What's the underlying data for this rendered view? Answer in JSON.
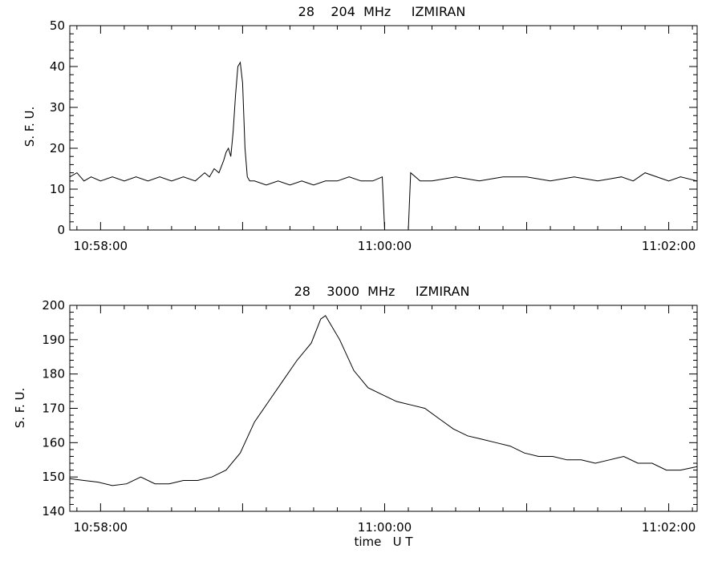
{
  "chart_data": [
    {
      "type": "line",
      "title": "28    204  MHz     IZMIRAN",
      "ylabel": "S. F. U.",
      "xlabel": "",
      "xlim": [
        "10:57:47",
        "11:02:12"
      ],
      "ylim": [
        0,
        50
      ],
      "yticks": [
        0,
        10,
        20,
        30,
        40,
        50
      ],
      "xtick_labels": [
        "10:58:00",
        "11:00:00",
        "11:02:00"
      ],
      "grid": false,
      "series": [
        {
          "x": [
            "10:57:47",
            "10:57:50",
            "10:57:53",
            "10:57:56",
            "10:58:00",
            "10:58:05",
            "10:58:10",
            "10:58:15",
            "10:58:20",
            "10:58:25",
            "10:58:30",
            "10:58:35",
            "10:58:40",
            "10:58:44",
            "10:58:46",
            "10:58:48",
            "10:58:50",
            "10:58:52",
            "10:58:53",
            "10:58:54",
            "10:58:55",
            "10:58:56",
            "10:58:57",
            "10:58:58",
            "10:58:59",
            "10:59:00",
            "10:59:01",
            "10:59:02",
            "10:59:03",
            "10:59:05",
            "10:59:10",
            "10:59:15",
            "10:59:20",
            "10:59:25",
            "10:59:30",
            "10:59:35",
            "10:59:40",
            "10:59:45",
            "10:59:50",
            "10:59:55",
            "10:59:59",
            "11:00:00",
            "11:00:10",
            "11:00:11",
            "11:00:15",
            "11:00:20",
            "11:00:30",
            "11:00:40",
            "11:00:50",
            "11:01:00",
            "11:01:10",
            "11:01:20",
            "11:01:30",
            "11:01:40",
            "11:01:45",
            "11:01:50",
            "11:02:00",
            "11:02:05",
            "11:02:12"
          ],
          "values": [
            13,
            14,
            12,
            13,
            12,
            13,
            12,
            13,
            12,
            13,
            12,
            13,
            12,
            14,
            13,
            15,
            14,
            17,
            19,
            20,
            18,
            24,
            33,
            40,
            41,
            36,
            20,
            13,
            12,
            12,
            11,
            12,
            11,
            12,
            11,
            12,
            12,
            13,
            12,
            12,
            13,
            -2,
            -2,
            14,
            12,
            12,
            13,
            12,
            13,
            13,
            12,
            13,
            12,
            13,
            12,
            14,
            12,
            13,
            12
          ]
        }
      ]
    },
    {
      "type": "line",
      "title": "28    3000  MHz     IZMIRAN",
      "ylabel": "S. F. U.",
      "xlabel": "time   U T",
      "xlim": [
        "10:57:47",
        "11:02:12"
      ],
      "ylim": [
        140,
        200
      ],
      "yticks": [
        140,
        150,
        160,
        170,
        180,
        190,
        200
      ],
      "xtick_labels": [
        "10:58:00",
        "11:00:00",
        "11:02:00"
      ],
      "grid": false,
      "series": [
        {
          "x": [
            "10:57:47",
            "10:57:53",
            "10:57:59",
            "10:58:05",
            "10:58:11",
            "10:58:17",
            "10:58:23",
            "10:58:29",
            "10:58:35",
            "10:58:41",
            "10:58:47",
            "10:58:53",
            "10:58:59",
            "10:59:05",
            "10:59:11",
            "10:59:17",
            "10:59:23",
            "10:59:29",
            "10:59:33",
            "10:59:35",
            "10:59:41",
            "10:59:47",
            "10:59:53",
            "10:59:59",
            "11:00:05",
            "11:00:11",
            "11:00:17",
            "11:00:23",
            "11:00:29",
            "11:00:35",
            "11:00:41",
            "11:00:47",
            "11:00:53",
            "11:00:59",
            "11:01:05",
            "11:01:11",
            "11:01:17",
            "11:01:23",
            "11:01:29",
            "11:01:35",
            "11:01:41",
            "11:01:47",
            "11:01:53",
            "11:01:59",
            "11:02:05",
            "11:02:12"
          ],
          "values": [
            149.5,
            149,
            148.5,
            147.5,
            148,
            150,
            148,
            148,
            149,
            149,
            150,
            152,
            157,
            166,
            172,
            178,
            184,
            189,
            196,
            197,
            190,
            181,
            176,
            174,
            172,
            171,
            170,
            167,
            164,
            162,
            161,
            160,
            159,
            157,
            156,
            156,
            155,
            155,
            154,
            155,
            156,
            154,
            154,
            152,
            152,
            153
          ]
        }
      ]
    }
  ]
}
